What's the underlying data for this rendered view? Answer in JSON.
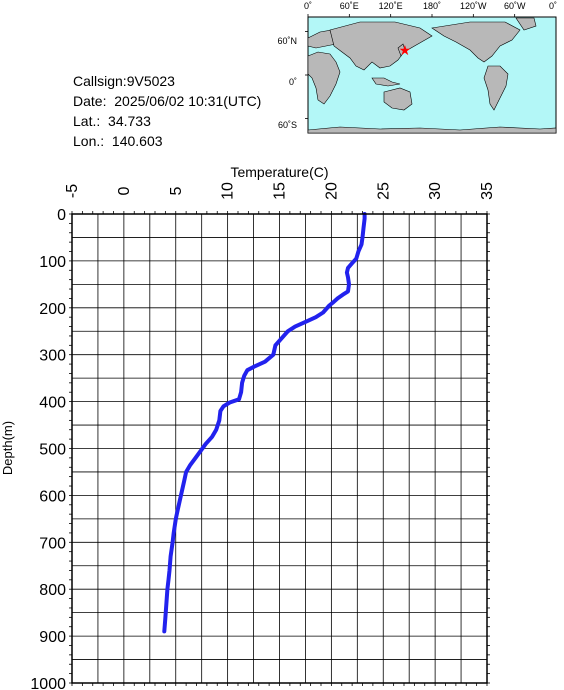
{
  "station": {
    "callsign_label": "Callsign:",
    "callsign": "9V5023",
    "date_label": "Date:",
    "date": "2025/06/02 10:31(UTC)",
    "lat_label": "Lat.:",
    "lat": "34.733",
    "lon_label": "Lon.:",
    "lon": "140.603"
  },
  "map": {
    "lon_labels": [
      "0˚",
      "60˚E",
      "120˚E",
      "180˚",
      "120˚W",
      "60˚W",
      "0˚"
    ],
    "lat_labels": [
      "60˚N",
      "0˚",
      "60˚S"
    ],
    "marker": {
      "lon": 140.603,
      "lat": 34.733
    },
    "colors": {
      "ocean": "#b3f7f7",
      "land": "#b8b8b8",
      "marker": "#ff0000"
    }
  },
  "chart_data": {
    "type": "line",
    "xlabel": "Temperature(C)",
    "ylabel": "Depth(m)",
    "xlim": [
      -5,
      35
    ],
    "ylim": [
      0,
      1000
    ],
    "y_inverted": true,
    "x_ticks": [
      "-5",
      "0",
      "5",
      "10",
      "15",
      "20",
      "25",
      "30",
      "35"
    ],
    "y_ticks": [
      "0",
      "100",
      "200",
      "300",
      "400",
      "500",
      "600",
      "700",
      "800",
      "900",
      "1000"
    ],
    "grid": true,
    "series": [
      {
        "color": "#2222ee",
        "points": [
          [
            23.2,
            0
          ],
          [
            23.2,
            10
          ],
          [
            23.1,
            30
          ],
          [
            23.0,
            50
          ],
          [
            22.9,
            65
          ],
          [
            22.6,
            80
          ],
          [
            22.4,
            95
          ],
          [
            22.0,
            105
          ],
          [
            21.6,
            115
          ],
          [
            21.5,
            125
          ],
          [
            21.6,
            135
          ],
          [
            21.7,
            150
          ],
          [
            21.6,
            165
          ],
          [
            21.1,
            172
          ],
          [
            20.6,
            180
          ],
          [
            20.2,
            188
          ],
          [
            19.8,
            195
          ],
          [
            19.2,
            210
          ],
          [
            18.5,
            220
          ],
          [
            17.5,
            230
          ],
          [
            16.5,
            240
          ],
          [
            15.8,
            250
          ],
          [
            15.2,
            265
          ],
          [
            14.6,
            280
          ],
          [
            14.4,
            300
          ],
          [
            13.6,
            315
          ],
          [
            12.6,
            325
          ],
          [
            11.9,
            333
          ],
          [
            11.6,
            345
          ],
          [
            11.4,
            360
          ],
          [
            11.3,
            380
          ],
          [
            11.1,
            395
          ],
          [
            10.2,
            402
          ],
          [
            9.6,
            410
          ],
          [
            9.3,
            420
          ],
          [
            9.2,
            440
          ],
          [
            8.9,
            460
          ],
          [
            8.5,
            475
          ],
          [
            7.9,
            490
          ],
          [
            7.4,
            505
          ],
          [
            6.9,
            520
          ],
          [
            6.4,
            535
          ],
          [
            6.0,
            550
          ],
          [
            5.8,
            570
          ],
          [
            5.6,
            590
          ],
          [
            5.4,
            610
          ],
          [
            5.2,
            630
          ],
          [
            5.0,
            650
          ],
          [
            4.8,
            680
          ],
          [
            4.7,
            700
          ],
          [
            4.5,
            730
          ],
          [
            4.4,
            760
          ],
          [
            4.3,
            780
          ],
          [
            4.2,
            800
          ],
          [
            4.1,
            830
          ],
          [
            4.0,
            860
          ],
          [
            3.9,
            890
          ]
        ]
      }
    ]
  }
}
